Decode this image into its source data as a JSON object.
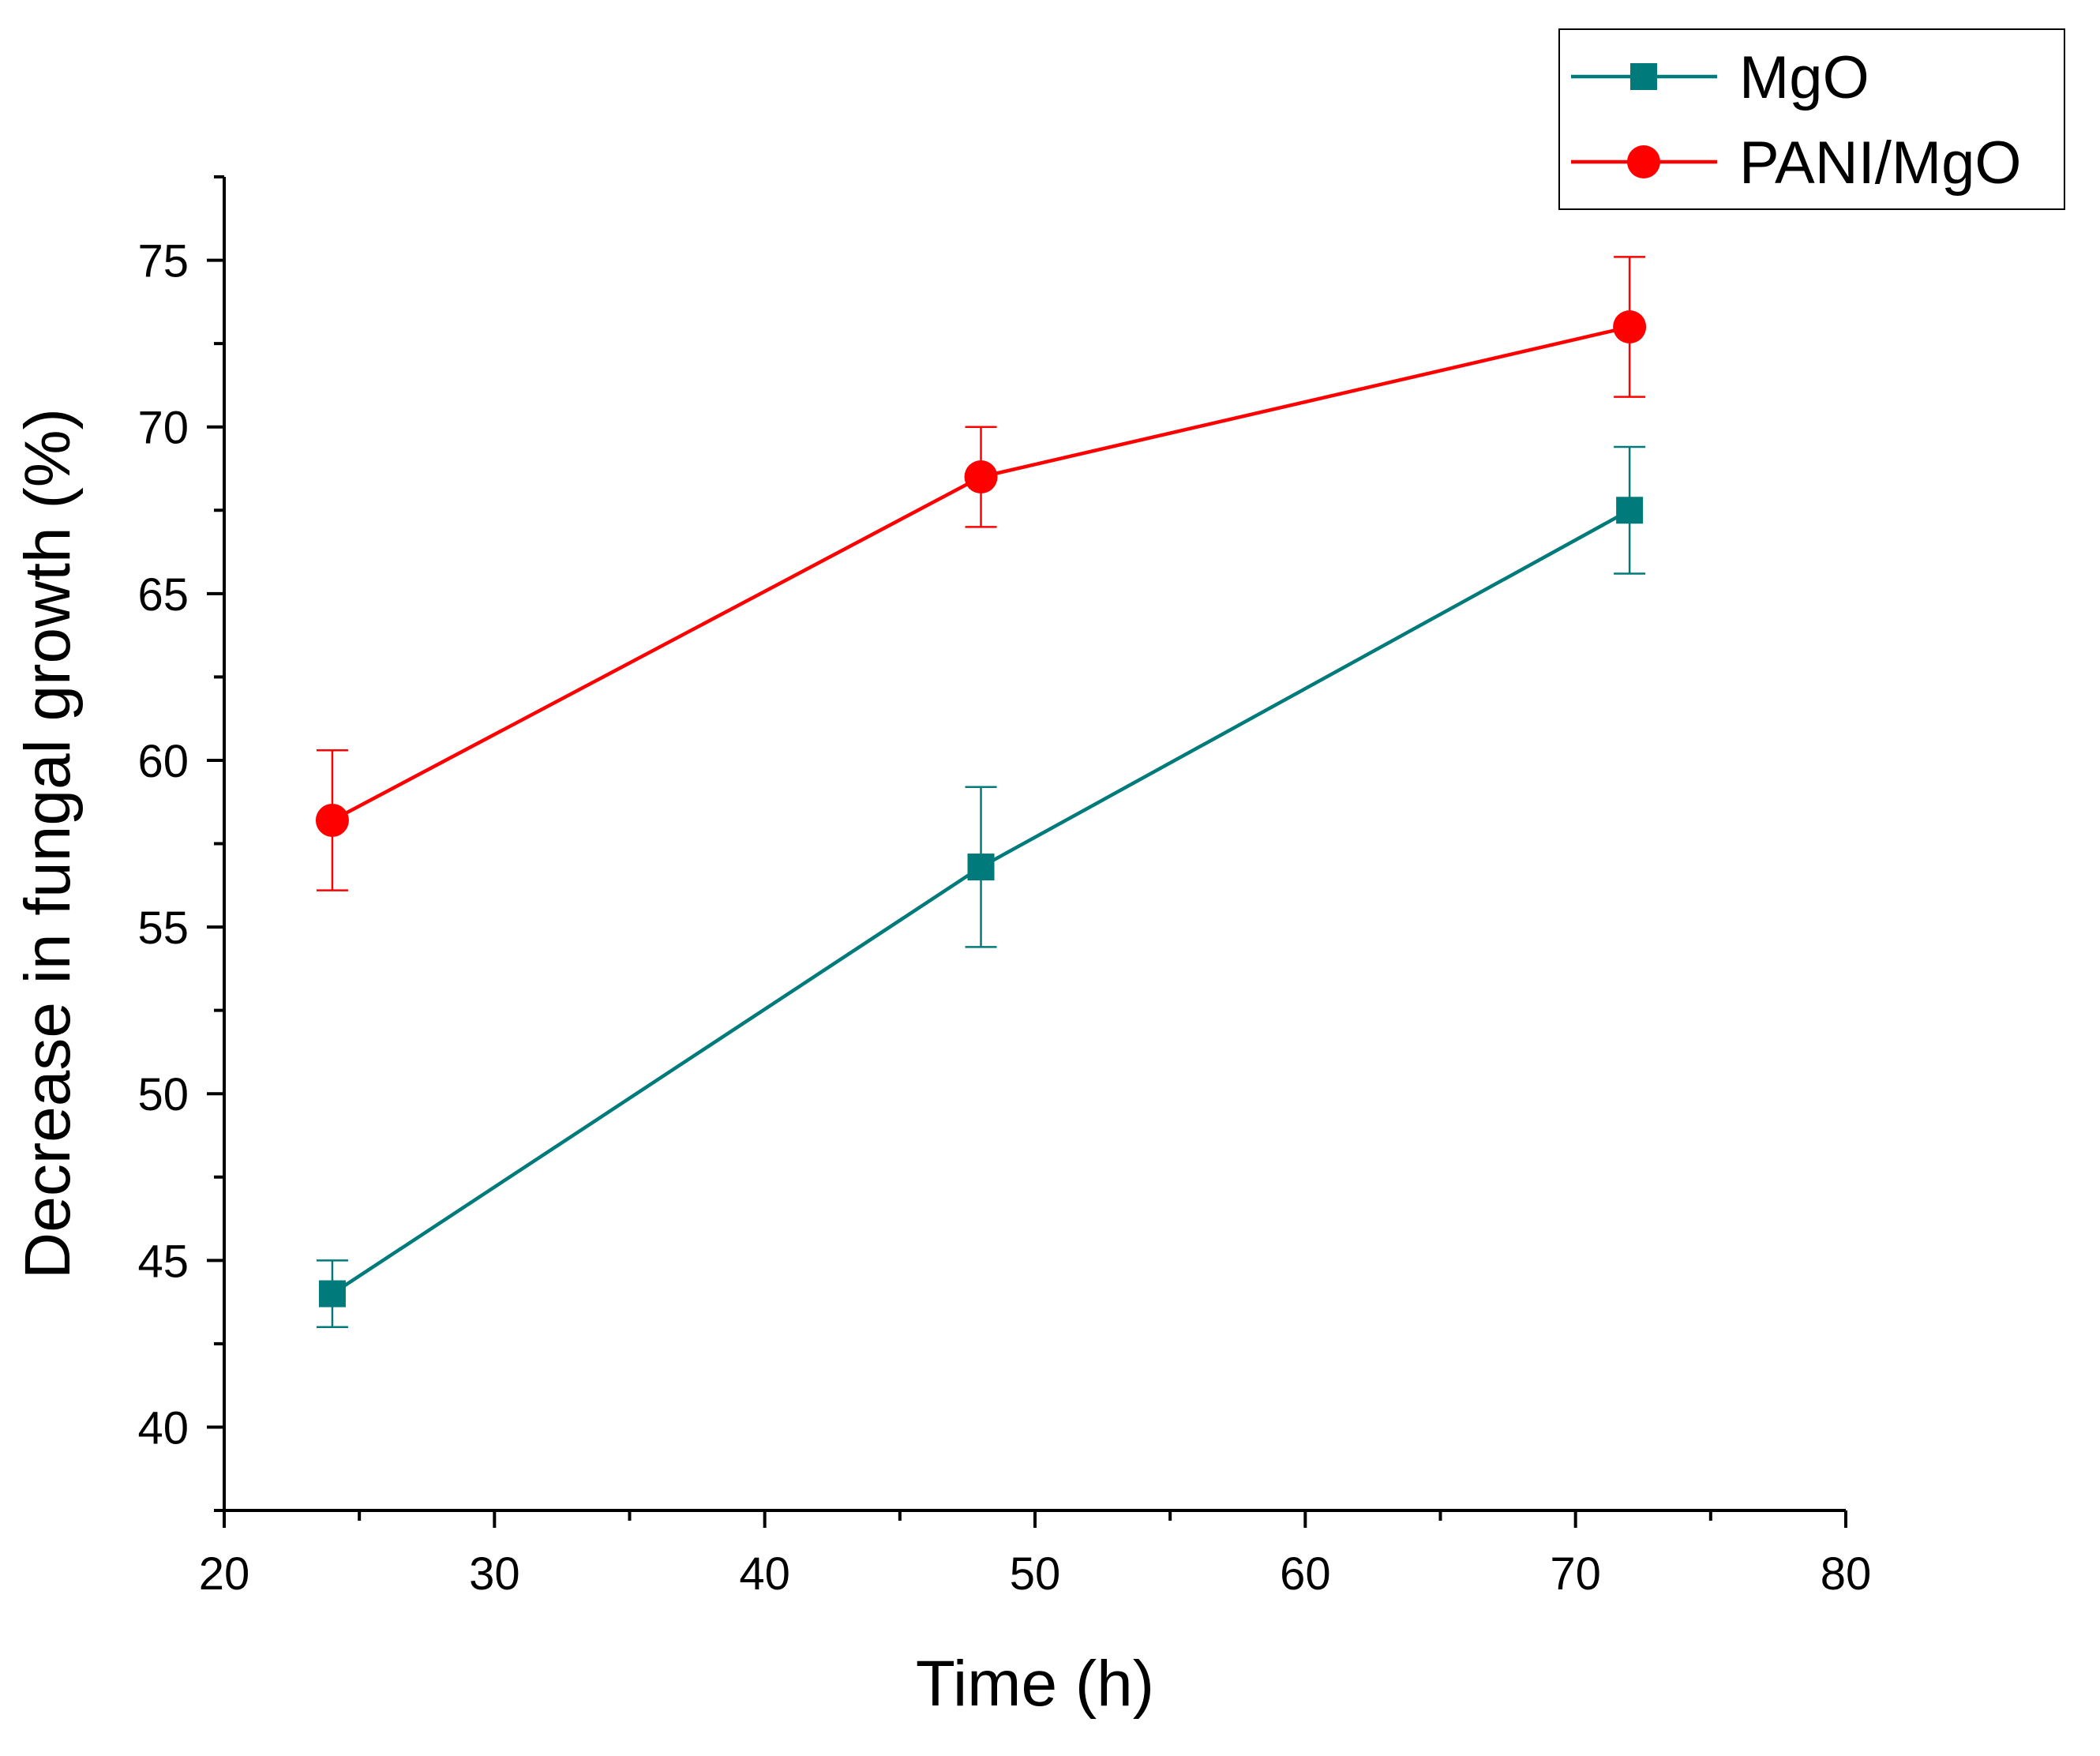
{
  "chart_data": {
    "type": "line",
    "title": "",
    "xlabel": "Time (h)",
    "ylabel": "Decrease in fungal growth (%)",
    "xlim": [
      20,
      80
    ],
    "ylim": [
      37.5,
      77.5
    ],
    "xticks": [
      20,
      30,
      40,
      50,
      60,
      70,
      80
    ],
    "yticks": [
      40,
      45,
      50,
      55,
      60,
      65,
      70,
      75
    ],
    "x": [
      24,
      48,
      72
    ],
    "grid": false,
    "legend_position": "top-right",
    "series": [
      {
        "name": "MgO",
        "color": "#007a7a",
        "marker": "square",
        "values": [
          44.0,
          56.8,
          67.5
        ],
        "errors": [
          1.0,
          2.4,
          1.9
        ]
      },
      {
        "name": "PANI/MgO",
        "color": "#ff0000",
        "marker": "circle",
        "values": [
          58.2,
          68.5,
          73.0
        ],
        "errors": [
          2.1,
          1.5,
          2.1
        ]
      }
    ]
  }
}
